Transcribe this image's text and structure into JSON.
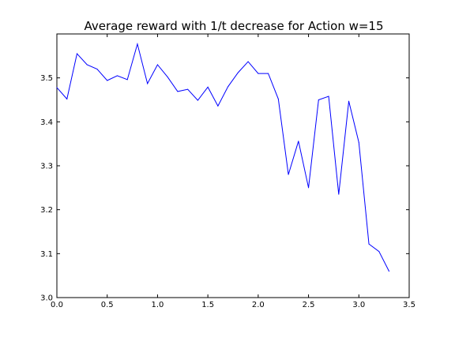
{
  "chart_data": {
    "type": "line",
    "title": "Average reward with 1/t decrease for Action w=15",
    "xlabel": "",
    "ylabel": "",
    "xlim": [
      0.0,
      3.5
    ],
    "ylim": [
      3.0,
      3.6
    ],
    "xticks": [
      "0.0",
      "0.5",
      "1.0",
      "1.5",
      "2.0",
      "2.5",
      "3.0",
      "3.5"
    ],
    "yticks": [
      "3.0",
      "3.1",
      "3.2",
      "3.3",
      "3.4",
      "3.5"
    ],
    "grid": false,
    "legend": "none",
    "line_color": "#0000ff",
    "series": [
      {
        "x": [
          0.0,
          0.1,
          0.2,
          0.3,
          0.4,
          0.5,
          0.6,
          0.7,
          0.8,
          0.9,
          1.0,
          1.1,
          1.2,
          1.3,
          1.4,
          1.5,
          1.6,
          1.7,
          1.8,
          1.9,
          2.0,
          2.1,
          2.2,
          2.3,
          2.4,
          2.5,
          2.6,
          2.7,
          2.8,
          2.9,
          3.0,
          3.1,
          3.2,
          3.3
        ],
        "values": [
          3.478,
          3.452,
          3.555,
          3.53,
          3.52,
          3.494,
          3.505,
          3.496,
          3.577,
          3.487,
          3.53,
          3.502,
          3.469,
          3.474,
          3.449,
          3.479,
          3.436,
          3.48,
          3.512,
          3.537,
          3.51,
          3.51,
          3.452,
          3.28,
          3.356,
          3.25,
          3.45,
          3.458,
          3.235,
          3.447,
          3.353,
          3.122,
          3.105,
          3.06
        ]
      }
    ]
  }
}
